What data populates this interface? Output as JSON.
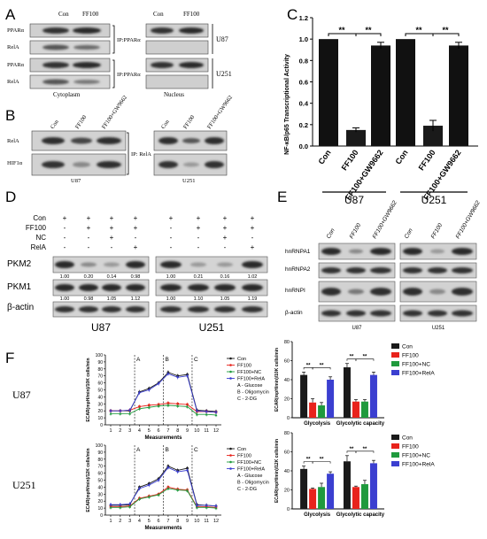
{
  "panelA": {
    "letter": "A",
    "con": "Con",
    "ff100": "FF100",
    "rows": [
      "PPARα",
      "RelA",
      "PPARα",
      "RelA"
    ],
    "ip1": "IP:PPARα",
    "ip2": "IP:PPARα",
    "cell1": "U87",
    "cell2": "U251",
    "cytoplasm": "Cytoplasm",
    "nucleus": "Nucleus"
  },
  "panelB": {
    "letter": "B",
    "lanes": [
      "Con",
      "FF100",
      "FF100+GW9662"
    ],
    "rows": [
      "RelA",
      "HIF1α"
    ],
    "ip": "IP: RelA",
    "cell1": "U87",
    "cell2": "U251"
  },
  "panelC": {
    "letter": "C",
    "sig": "**",
    "groups": [
      "U87",
      "U251"
    ]
  },
  "panelD": {
    "letter": "D",
    "treatments": [
      {
        "name": "Con",
        "u87": [
          "+",
          "+",
          "+",
          "+"
        ],
        "u251": [
          "+",
          "+",
          "+",
          "+"
        ]
      },
      {
        "name": "FF100",
        "u87": [
          "-",
          "+",
          "+",
          "+"
        ],
        "u251": [
          "-",
          "+",
          "+",
          "+"
        ]
      },
      {
        "name": "NC",
        "u87": [
          "-",
          "-",
          "+",
          "-"
        ],
        "u251": [
          "-",
          "-",
          "+",
          "-"
        ]
      },
      {
        "name": "RelA",
        "u87": [
          "-",
          "-",
          "-",
          "+"
        ],
        "u251": [
          "-",
          "-",
          "-",
          "+"
        ]
      }
    ],
    "pkm2": {
      "label": "PKM2",
      "u87": [
        "1.00",
        "0.20",
        "0.14",
        "0.98"
      ],
      "u251": [
        "1.00",
        "0.21",
        "0.16",
        "1.02"
      ]
    },
    "pkm1": {
      "label": "PKM1",
      "u87": [
        "1.00",
        "0.98",
        "1.05",
        "1.12"
      ],
      "u251": [
        "1.00",
        "1.10",
        "1.05",
        "1.19"
      ]
    },
    "actin": "β-actin",
    "cell1": "U87",
    "cell2": "U251"
  },
  "panelE": {
    "letter": "E",
    "lanes": [
      "Con",
      "FF100",
      "FF100+GW9662"
    ],
    "rows": [
      "hnRNPA1",
      "hnRNPA2",
      "hnRNPI",
      "β-actin"
    ],
    "cell1": "U87",
    "cell2": "U251"
  },
  "panelF": {
    "letter": "F",
    "row1": "U87",
    "row2": "U251",
    "phases": [
      "A",
      "B",
      "C"
    ],
    "phaseLegend": [
      "A - Glucose",
      "B - Oligomycin",
      "C - 2-DG"
    ],
    "lineSeries": [
      "Con",
      "FF100",
      "FF100+NC",
      "FF100+RelA"
    ],
    "barSeries": [
      "Con",
      "FF100",
      "FF100+NC",
      "FF100+RelA"
    ],
    "sig": "**"
  },
  "colors": {
    "con": "#1a1a1a",
    "ff100": "#e8231c",
    "nc": "#1f9a3d",
    "rela": "#3b3fd0"
  },
  "chart_data": [
    {
      "type": "bar",
      "ylabel": "NF-κB/p65 Transcriptional Activity",
      "ylim": [
        0.0,
        1.2
      ],
      "yticks": [
        "0.0",
        "0.2",
        "0.4",
        "0.6",
        "0.8",
        "1.0",
        "1.2"
      ],
      "categories": [
        "Con",
        "FF100",
        "FF100+GW9662",
        "Con",
        "FF100",
        "FF100+GW9662"
      ],
      "values": [
        1.0,
        0.15,
        0.94,
        1.0,
        0.19,
        0.94
      ],
      "errors": [
        0.0,
        0.02,
        0.03,
        0.0,
        0.05,
        0.03
      ]
    },
    {
      "type": "line",
      "ylabel": "ECAR(mpH/min)/10K cells/min",
      "xlabel": "Measurements",
      "x": [
        1,
        2,
        3,
        4,
        5,
        6,
        7,
        8,
        9,
        10,
        11,
        12
      ],
      "ylim": [
        0,
        100
      ],
      "yticks": [
        "0",
        "10",
        "20",
        "30",
        "40",
        "50",
        "60",
        "70",
        "80",
        "90",
        "100"
      ],
      "series": [
        {
          "name": "Con",
          "values": [
            20,
            20,
            20,
            47,
            52,
            60,
            75,
            70,
            72,
            21,
            20,
            19
          ]
        },
        {
          "name": "FF100",
          "values": [
            20,
            20,
            21,
            26,
            28,
            29,
            31,
            30,
            29,
            19,
            19,
            18
          ]
        },
        {
          "name": "FF100+NC",
          "values": [
            16,
            16,
            16,
            23,
            25,
            27,
            28,
            27,
            26,
            15,
            15,
            14
          ]
        },
        {
          "name": "FF100+RelA",
          "values": [
            20,
            20,
            21,
            46,
            50,
            59,
            73,
            68,
            70,
            20,
            19,
            18
          ]
        }
      ]
    },
    {
      "type": "bar",
      "ylabel": "ECAR(mpH/min)/10K cells/min",
      "ylim": [
        0,
        80
      ],
      "yticks": [
        "0",
        "20",
        "40",
        "60",
        "80"
      ],
      "categories": [
        "Glycolysis",
        "Glycolytic capacity"
      ],
      "series": [
        {
          "name": "Con",
          "values": [
            45,
            53
          ],
          "errors": [
            3,
            4
          ]
        },
        {
          "name": "FF100",
          "values": [
            16,
            17
          ],
          "errors": [
            4,
            2
          ]
        },
        {
          "name": "FF100+NC",
          "values": [
            13,
            17
          ],
          "errors": [
            3,
            2
          ]
        },
        {
          "name": "FF100+RelA",
          "values": [
            40,
            45
          ],
          "errors": [
            3,
            3
          ]
        }
      ]
    },
    {
      "type": "line",
      "ylabel": "ECAR(mpH/min)/12K cells/min",
      "xlabel": "Measurements",
      "x": [
        1,
        2,
        3,
        4,
        5,
        6,
        7,
        8,
        9,
        10,
        11,
        12
      ],
      "ylim": [
        0,
        100
      ],
      "yticks": [
        "0",
        "10",
        "20",
        "30",
        "40",
        "50",
        "60",
        "70",
        "80",
        "90",
        "100"
      ],
      "series": [
        {
          "name": "Con",
          "values": [
            14,
            14,
            15,
            40,
            45,
            52,
            70,
            64,
            67,
            15,
            14,
            13
          ]
        },
        {
          "name": "FF100",
          "values": [
            12,
            12,
            13,
            24,
            27,
            30,
            40,
            37,
            36,
            12,
            12,
            11
          ]
        },
        {
          "name": "FF100+NC",
          "values": [
            11,
            11,
            12,
            23,
            26,
            29,
            38,
            36,
            35,
            11,
            11,
            10
          ]
        },
        {
          "name": "FF100+RelA",
          "values": [
            15,
            15,
            16,
            38,
            43,
            50,
            68,
            62,
            64,
            14,
            14,
            13
          ]
        }
      ]
    },
    {
      "type": "bar",
      "ylabel": "ECAR(mpH/min)/12K cells/min",
      "ylim": [
        0,
        80
      ],
      "yticks": [
        "0",
        "20",
        "40",
        "60",
        "80"
      ],
      "categories": [
        "Glycolysis",
        "Glycolytic capacity"
      ],
      "series": [
        {
          "name": "Con",
          "values": [
            42,
            50
          ],
          "errors": [
            3,
            6
          ]
        },
        {
          "name": "FF100",
          "values": [
            21,
            23
          ],
          "errors": [
            1,
            1
          ]
        },
        {
          "name": "FF100+NC",
          "values": [
            23,
            26
          ],
          "errors": [
            4,
            4
          ]
        },
        {
          "name": "FF100+RelA",
          "values": [
            37,
            48
          ],
          "errors": [
            2,
            3
          ]
        }
      ]
    }
  ]
}
